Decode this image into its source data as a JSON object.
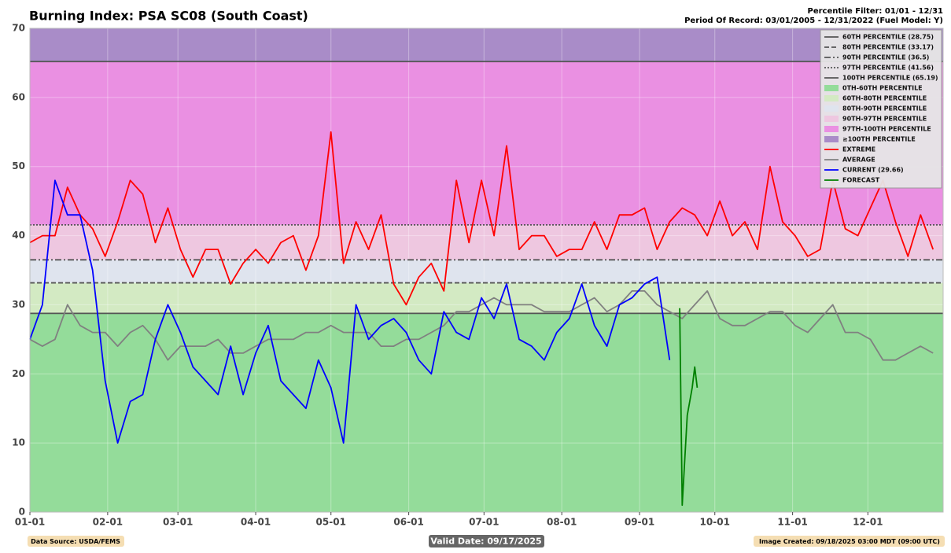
{
  "chart_data": {
    "type": "line",
    "title": "Burning Index: PSA SC08 (South Coast)",
    "subtitle_lines": [
      "Percentile Filter: 01/01 - 12/31",
      "Period Of Record: 03/01/2005 - 12/31/2022 (Fuel Model: Y)"
    ],
    "footer_left": "Data Source: USDA/FEMS",
    "footer_center": "Valid Date: 09/17/2025",
    "footer_right": "Image Created: 09/18/2025 03:00 MDT (09:00 UTC)",
    "xlim": [
      0,
      364
    ],
    "xticks": [
      {
        "value": 0,
        "label": "01-01"
      },
      {
        "value": 31,
        "label": "02-01"
      },
      {
        "value": 59,
        "label": "03-01"
      },
      {
        "value": 90,
        "label": "04-01"
      },
      {
        "value": 120,
        "label": "05-01"
      },
      {
        "value": 151,
        "label": "06-01"
      },
      {
        "value": 181,
        "label": "07-01"
      },
      {
        "value": 212,
        "label": "08-01"
      },
      {
        "value": 243,
        "label": "09-01"
      },
      {
        "value": 273,
        "label": "10-01"
      },
      {
        "value": 304,
        "label": "11-01"
      },
      {
        "value": 334,
        "label": "12-01"
      }
    ],
    "ylim": [
      0,
      70
    ],
    "yticks": [
      0,
      10,
      20,
      30,
      40,
      50,
      60,
      70
    ],
    "grid": true,
    "legend": "upper right",
    "reference_lines": [
      {
        "name": "60TH PERCENTILE (28.75)",
        "value": 28.75,
        "dash": "solid",
        "color": "#555555"
      },
      {
        "name": "80TH PERCENTILE (33.17)",
        "value": 33.17,
        "dash": "dashed",
        "color": "#555555"
      },
      {
        "name": "90TH PERCENTILE (36.5)",
        "value": 36.5,
        "dash": "dashdot",
        "color": "#555555"
      },
      {
        "name": "97TH PERCENTILE (41.56)",
        "value": 41.56,
        "dash": "dotted",
        "color": "#555555"
      },
      {
        "name": "100TH PERCENTILE (65.19)",
        "value": 65.19,
        "dash": "solid",
        "color": "#555555"
      }
    ],
    "bands": [
      {
        "name": "0TH-60TH PERCENTILE",
        "range": [
          0,
          28.75
        ],
        "color": "#94dc9a"
      },
      {
        "name": "60TH-80TH PERCENTILE",
        "range": [
          28.75,
          33.17
        ],
        "color": "#d3eac3"
      },
      {
        "name": "80TH-90TH PERCENTILE",
        "range": [
          33.17,
          36.5
        ],
        "color": "#dfe4ee"
      },
      {
        "name": "90TH-97TH PERCENTILE",
        "range": [
          36.5,
          41.56
        ],
        "color": "#eec7e0"
      },
      {
        "name": "97TH-100TH PERCENTILE",
        "range": [
          41.56,
          65.19
        ],
        "color": "#ea90e2"
      },
      {
        "name": "≥100TH PERCENTILE",
        "range": [
          65.19,
          70
        ],
        "color": "#a98cc8"
      }
    ],
    "x": [
      0,
      5,
      10,
      15,
      20,
      25,
      30,
      35,
      40,
      45,
      50,
      55,
      60,
      65,
      70,
      75,
      80,
      85,
      90,
      95,
      100,
      105,
      110,
      115,
      120,
      125,
      130,
      135,
      140,
      145,
      150,
      155,
      160,
      165,
      170,
      175,
      180,
      185,
      190,
      195,
      200,
      205,
      210,
      215,
      220,
      225,
      230,
      235,
      240,
      245,
      250,
      255,
      260,
      265,
      270,
      275,
      280,
      285,
      290,
      295,
      300,
      305,
      310,
      315,
      320,
      325,
      330,
      335,
      340,
      345,
      350,
      355,
      360
    ],
    "series": [
      {
        "name": "EXTREME",
        "color": "#ff0000",
        "values": [
          39,
          40,
          40,
          47,
          43,
          41,
          37,
          42,
          48,
          46,
          39,
          44,
          38,
          34,
          38,
          38,
          33,
          36,
          38,
          36,
          39,
          40,
          35,
          40,
          55,
          36,
          42,
          38,
          43,
          33,
          30,
          34,
          36,
          32,
          48,
          39,
          48,
          40,
          53,
          38,
          40,
          40,
          37,
          38,
          38,
          42,
          38,
          43,
          43,
          44,
          38,
          42,
          44,
          43,
          40,
          45,
          40,
          42,
          38,
          50,
          42,
          40,
          37,
          38,
          48,
          41,
          40,
          44,
          48,
          42,
          37,
          43,
          38
        ]
      },
      {
        "name": "AVERAGE",
        "color": "#808080",
        "values": [
          25,
          24,
          25,
          30,
          27,
          26,
          26,
          24,
          26,
          27,
          25,
          22,
          24,
          24,
          24,
          25,
          23,
          23,
          24,
          25,
          25,
          25,
          26,
          26,
          27,
          26,
          26,
          26,
          24,
          24,
          25,
          25,
          26,
          27,
          29,
          29,
          30,
          31,
          30,
          30,
          30,
          29,
          29,
          29,
          30,
          31,
          29,
          30,
          32,
          32,
          30,
          29,
          28,
          30,
          32,
          28,
          27,
          27,
          28,
          29,
          29,
          27,
          26,
          28,
          30,
          26,
          26,
          25,
          22,
          22,
          23,
          24,
          23
        ]
      },
      {
        "name": "CURRENT (29.66)",
        "color": "#0000ff",
        "values": [
          25,
          30,
          48,
          43,
          43,
          35,
          19,
          10,
          16,
          17,
          25,
          30,
          26,
          21,
          19,
          17,
          24,
          17,
          23,
          27,
          19,
          17,
          15,
          22,
          18,
          10,
          30,
          25,
          27,
          28,
          26,
          22,
          20,
          29,
          26,
          25,
          31,
          28,
          33,
          25,
          24,
          22,
          26,
          28,
          33,
          27,
          24,
          30,
          31,
          33,
          34,
          22,
          null,
          null,
          null,
          null,
          null,
          null,
          null,
          null,
          null,
          null,
          null,
          null,
          null,
          null,
          null,
          null,
          null,
          null,
          null,
          null,
          null
        ]
      },
      {
        "name": "FORECAST",
        "color": "#008000",
        "x": [
          259,
          260,
          262,
          264,
          265,
          266
        ],
        "values": [
          29.5,
          1,
          14,
          18,
          21,
          18
        ]
      }
    ]
  }
}
